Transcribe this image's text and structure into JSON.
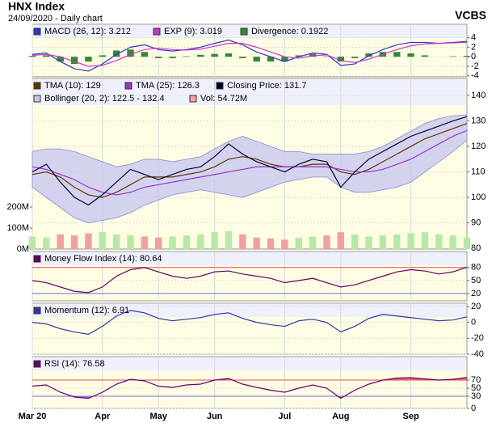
{
  "chart_data": [
    {
      "type": "line",
      "title": "HNX Index",
      "subtitle": "24/09/2020 - Daily chart",
      "source": "VCBS",
      "ylim": [
        -4.2,
        6.8
      ],
      "yticks": [
        -4,
        -2,
        0,
        2,
        4
      ],
      "series": [
        {
          "name": "MACD (26, 12): 3.212",
          "type": "line",
          "color": "#3333cc",
          "values": [
            0.5,
            0.8,
            -1,
            -2.5,
            -3,
            -1.5,
            0.5,
            2,
            2.5,
            1.5,
            1.2,
            1.5,
            2,
            2.8,
            3.5,
            2.5,
            1,
            0,
            -1,
            0,
            0.8,
            0.5,
            -1.8,
            -1.5,
            0.2,
            1.5,
            2.5,
            3,
            3,
            2.8,
            3,
            3.212
          ]
        },
        {
          "name": "EXP (9): 3.019",
          "type": "line",
          "color": "#cc33cc",
          "values": [
            0.3,
            0.5,
            0,
            -1,
            -2,
            -1.8,
            -0.8,
            0.5,
            1.5,
            1.8,
            1.5,
            1.4,
            1.6,
            2.2,
            2.8,
            2.8,
            2,
            1,
            0,
            -0.3,
            0.2,
            0.4,
            -0.8,
            -1.2,
            -0.5,
            0.5,
            1.5,
            2.3,
            2.7,
            2.8,
            2.9,
            3.019
          ]
        },
        {
          "name": "Divergence: 0.1922",
          "type": "bar",
          "color": "#338833",
          "values": [
            0.2,
            0.3,
            -1,
            -1.5,
            -1,
            0.3,
            1.3,
            1.5,
            1,
            -0.3,
            -0.3,
            0.1,
            0.4,
            0.6,
            0.7,
            -0.3,
            -1,
            -1,
            -1,
            0.3,
            0.6,
            0.1,
            -1,
            -0.3,
            0.7,
            1,
            1,
            0.7,
            0.3,
            0,
            0.1,
            0.1922
          ]
        }
      ]
    },
    {
      "type": "line",
      "ylim": [
        79.7,
        146.7
      ],
      "yticks": [
        80,
        90,
        100,
        110,
        120,
        130,
        140
      ],
      "y2lim": [
        0,
        811
      ],
      "y2ticks": [
        {
          "value": 0,
          "label": "0M"
        },
        {
          "value": 100,
          "label": "100M"
        },
        {
          "value": 200,
          "label": "200M"
        }
      ],
      "series": [
        {
          "name": "TMA (10): 129",
          "type": "line",
          "color": "#663300",
          "values": [
            109,
            110,
            108,
            104,
            101,
            100,
            102,
            105,
            108,
            108,
            108,
            109,
            110,
            112,
            115,
            116,
            115,
            113,
            112,
            112,
            113,
            113,
            110,
            109,
            111,
            114,
            117,
            120,
            123,
            125,
            127,
            129
          ]
        },
        {
          "name": "TMA (25): 126.3",
          "type": "line",
          "color": "#9933cc",
          "values": [
            112,
            111,
            109,
            107,
            104,
            102,
            101,
            102,
            104,
            105,
            106,
            107,
            108,
            109,
            110,
            111,
            112,
            112,
            112,
            112,
            112,
            112,
            111,
            110,
            110,
            111,
            113,
            115,
            118,
            121,
            124,
            126.3
          ]
        },
        {
          "name": "Closing Price: 131.7",
          "type": "line",
          "color": "#000033",
          "values": [
            110,
            113,
            106,
            100,
            97,
            101,
            106,
            111,
            109,
            107,
            109,
            111,
            112,
            116,
            121,
            117,
            114,
            112,
            110,
            113,
            115,
            114,
            104,
            110,
            115,
            118,
            121,
            124,
            126,
            128,
            130,
            131.7
          ]
        },
        {
          "name": "Bollinger (20, 2): 122.5 - 132.4",
          "type": "band",
          "color": "#c4c4f0",
          "upper": [
            118,
            119,
            119,
            118,
            116,
            114,
            112,
            113,
            115,
            115,
            114,
            115,
            116,
            119,
            122,
            124,
            122,
            120,
            118,
            118,
            117,
            117,
            117,
            117,
            118,
            120,
            123,
            126,
            129,
            131,
            132,
            132.4
          ],
          "lower": [
            104,
            100,
            96,
            92,
            90,
            91,
            92,
            94,
            97,
            99,
            101,
            102,
            103,
            102,
            101,
            100,
            102,
            104,
            106,
            107,
            108,
            108,
            104,
            102,
            102,
            103,
            104,
            106,
            110,
            114,
            118,
            122.5
          ]
        },
        {
          "name": "Vol: 54.72M",
          "type": "bar",
          "axis": "y2",
          "color": "#f0a0a0",
          "up_color": "#b8e8a8",
          "values": [
            60,
            55,
            70,
            65,
            75,
            80,
            70,
            65,
            60,
            55,
            60,
            65,
            70,
            80,
            85,
            70,
            55,
            50,
            45,
            55,
            60,
            65,
            80,
            70,
            60,
            65,
            70,
            75,
            80,
            70,
            65,
            54.72
          ]
        }
      ]
    },
    {
      "type": "line",
      "ylim": [
        3,
        117
      ],
      "yticks": [
        20,
        50,
        80
      ],
      "levels": [
        80,
        20
      ],
      "level_colors": [
        "#e05050",
        "#7070e0"
      ],
      "series": [
        {
          "name": "Money Flow Index (14): 80.64",
          "type": "line",
          "color": "#660066",
          "values": [
            50,
            45,
            35,
            25,
            22,
            35,
            60,
            75,
            80,
            70,
            60,
            55,
            60,
            70,
            72,
            65,
            60,
            55,
            45,
            50,
            55,
            45,
            35,
            40,
            50,
            60,
            70,
            75,
            72,
            65,
            70,
            80.64
          ]
        }
      ]
    },
    {
      "type": "line",
      "ylim": [
        -40,
        24
      ],
      "yticks": [
        -40,
        -20,
        0,
        20
      ],
      "series": [
        {
          "name": "Momentum (12): 6.91",
          "type": "line",
          "color": "#3333aa",
          "values": [
            0,
            -2,
            -8,
            -12,
            -15,
            -5,
            8,
            15,
            12,
            5,
            2,
            4,
            6,
            10,
            12,
            5,
            0,
            -3,
            -5,
            2,
            4,
            0,
            -12,
            -5,
            5,
            10,
            8,
            6,
            4,
            2,
            3,
            6.91
          ]
        }
      ]
    },
    {
      "type": "line",
      "ylim": [
        0,
        128
      ],
      "yticks": [
        0,
        30,
        50,
        70
      ],
      "levels": [
        70,
        30
      ],
      "level_colors": [
        "#e05050",
        "#7070e0"
      ],
      "level_fill": true,
      "categories": [
        "Mar 20",
        null,
        null,
        null,
        null,
        "Apr",
        null,
        null,
        null,
        "May",
        null,
        null,
        null,
        "Jun",
        null,
        null,
        null,
        null,
        "Jul",
        null,
        null,
        null,
        "Aug",
        null,
        null,
        null,
        null,
        "Sep",
        null,
        null,
        null,
        null
      ],
      "series": [
        {
          "name": "RSI (14): 76.58",
          "type": "line",
          "color": "#660066",
          "values": [
            55,
            58,
            40,
            28,
            25,
            40,
            60,
            72,
            68,
            55,
            52,
            58,
            60,
            70,
            74,
            60,
            52,
            45,
            40,
            50,
            58,
            50,
            25,
            45,
            60,
            70,
            75,
            76,
            73,
            70,
            72,
            76.58
          ]
        }
      ]
    }
  ]
}
